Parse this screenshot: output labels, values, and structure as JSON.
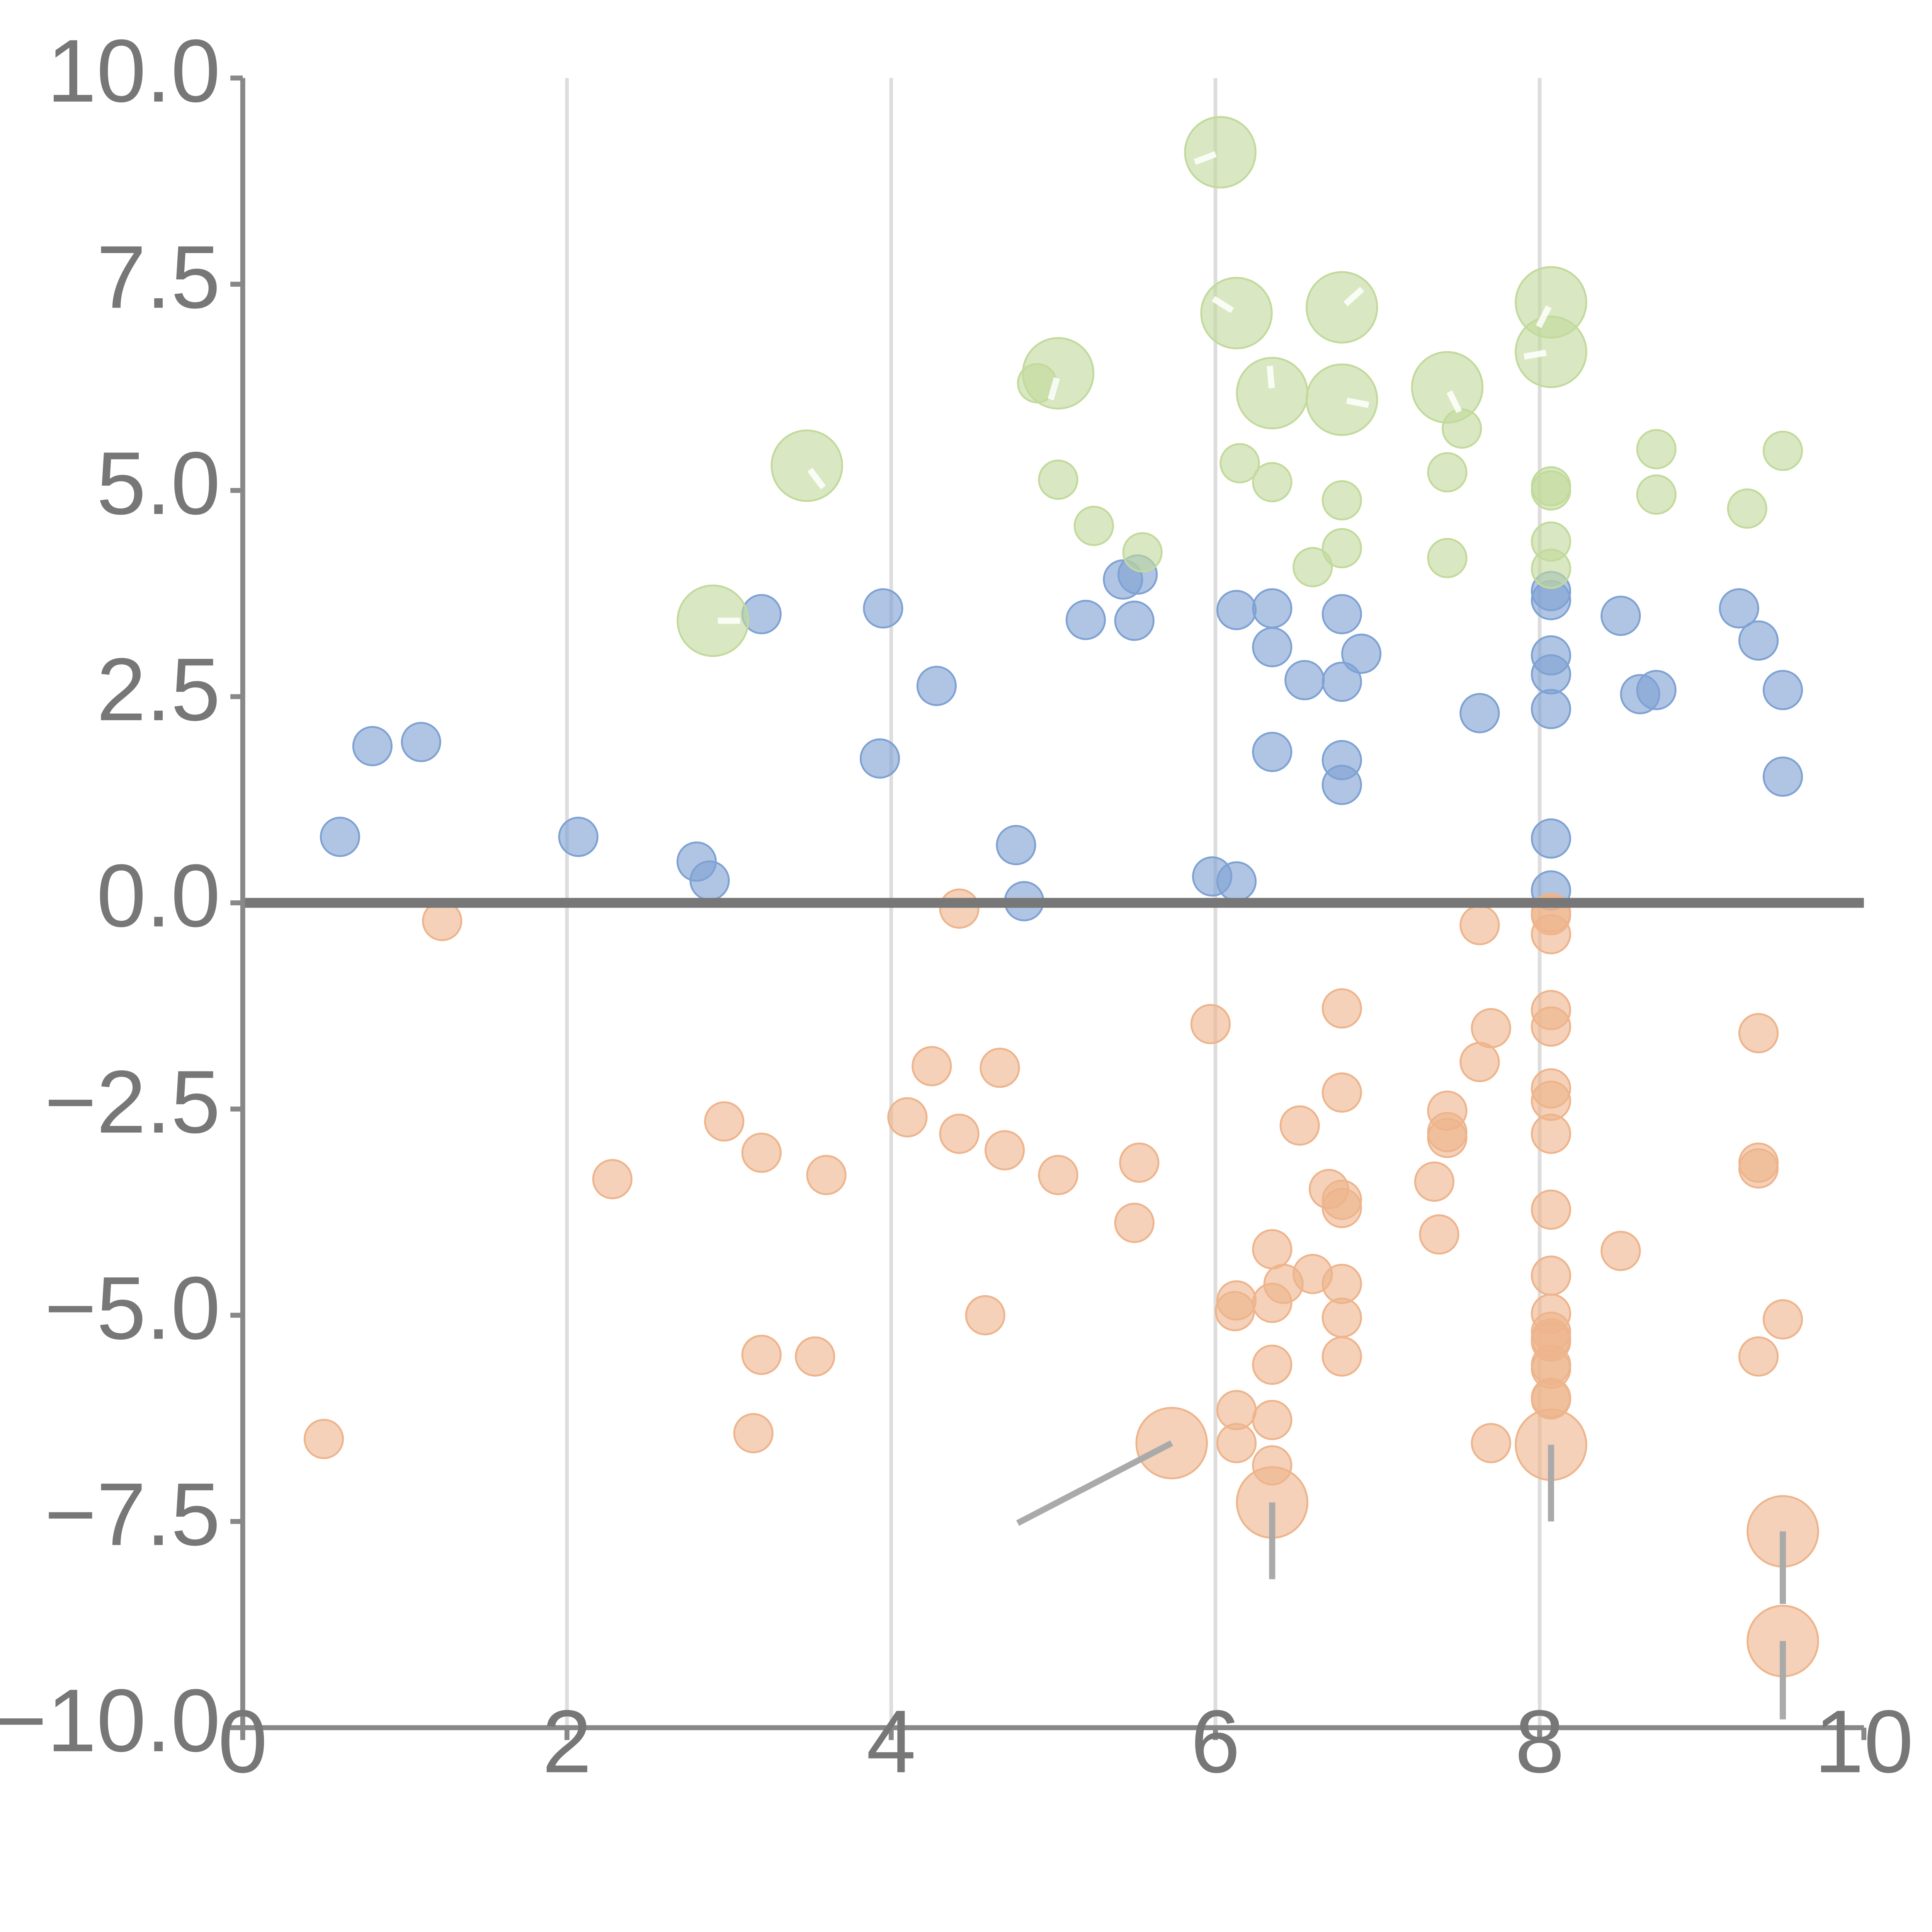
{
  "chart_data": {
    "type": "scatter",
    "title": "",
    "xlabel": "",
    "ylabel": "",
    "xlim": [
      0,
      10
    ],
    "ylim": [
      -10,
      10
    ],
    "x_ticks": [
      0,
      2,
      4,
      6,
      8,
      10
    ],
    "x_tick_labels": [
      "0",
      "2",
      "4",
      "6",
      "8",
      "10"
    ],
    "y_ticks": [
      10,
      7.5,
      5,
      2.5,
      0,
      -2.5,
      -5,
      -7.5,
      -10
    ],
    "y_tick_labels": [
      "10.0",
      "7.5",
      "5.0",
      "2.5",
      "0.0",
      "−2.5",
      "−5.0",
      "−7.5",
      "−10.0"
    ],
    "grid": "vertical lines at x = 2, 4, 6, 8",
    "zero_line": true,
    "legend": "none",
    "series": [
      {
        "color": "#7fa2d3",
        "points": [
          [
            0.6,
            0.8
          ],
          [
            0.8,
            1.9
          ],
          [
            1.1,
            1.95
          ],
          [
            2.07,
            0.8
          ],
          [
            2.8,
            0.5
          ],
          [
            2.88,
            0.27
          ],
          [
            3.2,
            3.5
          ],
          [
            3.93,
            1.75
          ],
          [
            3.95,
            3.57
          ],
          [
            4.28,
            2.63
          ],
          [
            4.77,
            0.7
          ],
          [
            4.82,
            0.02
          ],
          [
            5.2,
            3.43
          ],
          [
            5.43,
            3.92
          ],
          [
            5.5,
            3.42
          ],
          [
            5.52,
            3.98
          ],
          [
            5.98,
            0.32
          ],
          [
            6.13,
            0.26
          ],
          [
            6.13,
            3.55
          ],
          [
            6.35,
            3.57
          ],
          [
            6.35,
            3.1
          ],
          [
            6.35,
            1.83
          ],
          [
            6.55,
            2.7
          ],
          [
            6.78,
            3.5
          ],
          [
            6.78,
            2.68
          ],
          [
            6.78,
            1.73
          ],
          [
            6.78,
            1.43
          ],
          [
            6.9,
            3.02
          ],
          [
            7.63,
            2.3
          ],
          [
            8.07,
            3.78
          ],
          [
            8.07,
            3.67
          ],
          [
            8.07,
            3.0
          ],
          [
            8.07,
            2.77
          ],
          [
            8.07,
            2.35
          ],
          [
            8.07,
            0.78
          ],
          [
            8.07,
            0.15
          ],
          [
            8.5,
            3.48
          ],
          [
            8.62,
            2.53
          ],
          [
            8.72,
            2.58
          ],
          [
            9.23,
            3.57
          ],
          [
            9.35,
            3.18
          ],
          [
            9.5,
            2.58
          ],
          [
            9.5,
            1.53
          ]
        ]
      },
      {
        "color": "#eeb48c",
        "points": [
          [
            0.5,
            -6.5
          ],
          [
            1.23,
            -0.22
          ],
          [
            2.28,
            -3.35
          ],
          [
            2.97,
            -2.65
          ],
          [
            3.15,
            -6.43
          ],
          [
            3.2,
            -3.03
          ],
          [
            3.2,
            -5.48
          ],
          [
            3.53,
            -5.5
          ],
          [
            3.6,
            -3.3
          ],
          [
            4.1,
            -2.6
          ],
          [
            4.25,
            -1.98
          ],
          [
            4.42,
            -0.07
          ],
          [
            4.42,
            -2.8
          ],
          [
            4.58,
            -5.0
          ],
          [
            4.67,
            -2.0
          ],
          [
            4.7,
            -3.0
          ],
          [
            5.03,
            -3.3
          ],
          [
            5.5,
            -3.88
          ],
          [
            5.53,
            -3.15
          ],
          [
            5.97,
            -1.47
          ],
          [
            6.12,
            -4.95
          ],
          [
            6.13,
            -4.82
          ],
          [
            6.13,
            -6.15
          ],
          [
            6.13,
            -6.55
          ],
          [
            6.35,
            -4.2
          ],
          [
            6.35,
            -4.85
          ],
          [
            6.35,
            -5.6
          ],
          [
            6.35,
            -6.27
          ],
          [
            6.35,
            -6.82
          ],
          [
            6.42,
            -4.62
          ],
          [
            6.52,
            -2.7
          ],
          [
            6.6,
            -4.5
          ],
          [
            6.7,
            -3.47
          ],
          [
            6.78,
            -1.28
          ],
          [
            6.78,
            -2.3
          ],
          [
            6.78,
            -3.6
          ],
          [
            6.78,
            -3.7
          ],
          [
            6.78,
            -4.62
          ],
          [
            6.78,
            -5.03
          ],
          [
            6.78,
            -5.5
          ],
          [
            7.35,
            -3.38
          ],
          [
            7.38,
            -4.02
          ],
          [
            7.43,
            -2.52
          ],
          [
            7.43,
            -2.78
          ],
          [
            7.43,
            -2.85
          ],
          [
            7.63,
            -0.27
          ],
          [
            7.63,
            -1.93
          ],
          [
            7.7,
            -1.52
          ],
          [
            7.7,
            -6.55
          ],
          [
            8.07,
            -0.12
          ],
          [
            8.07,
            -0.15
          ],
          [
            8.07,
            -0.38
          ],
          [
            8.07,
            -1.3
          ],
          [
            8.07,
            -1.5
          ],
          [
            8.07,
            -2.25
          ],
          [
            8.07,
            -2.4
          ],
          [
            8.07,
            -2.8
          ],
          [
            8.07,
            -3.72
          ],
          [
            8.07,
            -4.52
          ],
          [
            8.07,
            -4.98
          ],
          [
            8.07,
            -5.2
          ],
          [
            8.07,
            -5.28
          ],
          [
            8.07,
            -5.32
          ],
          [
            8.07,
            -5.6
          ],
          [
            8.07,
            -5.65
          ],
          [
            8.07,
            -6.0
          ],
          [
            8.07,
            -6.02
          ],
          [
            8.5,
            -4.22
          ],
          [
            9.35,
            -1.58
          ],
          [
            9.35,
            -3.15
          ],
          [
            9.35,
            -3.22
          ],
          [
            9.35,
            -5.5
          ],
          [
            9.5,
            -5.05
          ]
        ],
        "large_points": [
          [
            5.73,
            -6.55
          ],
          [
            6.35,
            -7.27
          ],
          [
            8.07,
            -6.57
          ],
          [
            9.5,
            -7.62
          ],
          [
            9.5,
            -8.95
          ]
        ]
      },
      {
        "color": "#c2da9c",
        "points": [
          [
            4.9,
            6.3
          ],
          [
            5.03,
            5.13
          ],
          [
            5.25,
            4.57
          ],
          [
            5.55,
            4.25
          ],
          [
            6.15,
            5.33
          ],
          [
            6.35,
            5.1
          ],
          [
            6.6,
            4.07
          ],
          [
            6.78,
            4.88
          ],
          [
            6.78,
            4.3
          ],
          [
            7.43,
            5.22
          ],
          [
            7.43,
            4.18
          ],
          [
            7.52,
            5.75
          ],
          [
            8.07,
            5.05
          ],
          [
            8.07,
            5.0
          ],
          [
            8.07,
            4.38
          ],
          [
            8.07,
            4.05
          ],
          [
            8.72,
            5.5
          ],
          [
            8.72,
            4.95
          ],
          [
            9.28,
            4.78
          ],
          [
            9.5,
            5.48
          ]
        ],
        "large_points": [
          [
            2.9,
            3.42
          ],
          [
            3.48,
            5.3
          ],
          [
            5.03,
            6.42
          ],
          [
            6.03,
            9.1
          ],
          [
            6.13,
            7.15
          ],
          [
            6.35,
            6.18
          ],
          [
            6.78,
            7.22
          ],
          [
            6.78,
            6.1
          ],
          [
            7.43,
            6.25
          ],
          [
            8.07,
            7.28
          ],
          [
            8.07,
            6.68
          ]
        ]
      }
    ],
    "connectors": [
      [
        [
          5.73,
          -6.55
        ],
        [
          4.78,
          -7.52
        ]
      ],
      [
        [
          6.35,
          -7.27
        ],
        [
          6.35,
          -8.2
        ]
      ],
      [
        [
          8.07,
          -6.57
        ],
        [
          8.07,
          -7.5
        ]
      ],
      [
        [
          9.5,
          -7.62
        ],
        [
          9.5,
          -8.5
        ]
      ],
      [
        [
          9.5,
          -8.95
        ],
        [
          9.5,
          -9.9
        ]
      ]
    ]
  }
}
